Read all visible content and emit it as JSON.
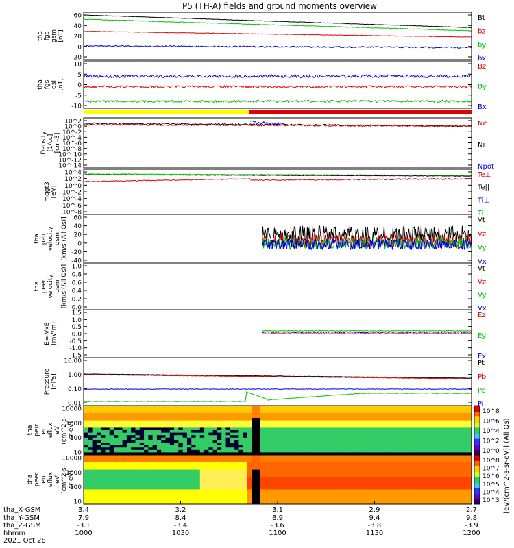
{
  "title": "P5 (TH-A) fields and ground moments overview",
  "chart_data": {
    "type": "line",
    "date_label": "2021 Oct 28",
    "x_axis": {
      "row_labels": [
        "tha_X-GSM",
        "tha_Y-GSM",
        "tha_Z-GSM",
        "hhmm"
      ],
      "columns": [
        {
          "x_gsm": "3.4",
          "y_gsm": "7.9",
          "z_gsm": "-3.1",
          "hhmm": "1000"
        },
        {
          "x_gsm": "3.2",
          "y_gsm": "8.4",
          "z_gsm": "-3.4",
          "hhmm": "1030"
        },
        {
          "x_gsm": "3.1",
          "y_gsm": "8.9",
          "z_gsm": "-3.6",
          "hhmm": "1100"
        },
        {
          "x_gsm": "2.9",
          "y_gsm": "9.4",
          "z_gsm": "-3.8",
          "hhmm": "1130"
        },
        {
          "x_gsm": "2.7",
          "y_gsm": "9.8",
          "z_gsm": "-3.9",
          "hhmm": "1200"
        }
      ]
    },
    "panels": [
      {
        "ylabel": [
          "tha",
          "fgs",
          "gsm",
          "[nT]"
        ],
        "ticks": [
          "60",
          "40",
          "20",
          "0",
          "-20"
        ],
        "legend": [
          {
            "name": "Bt",
            "color": "#000000"
          },
          {
            "name": "bz",
            "color": "#e00000"
          },
          {
            "name": "by",
            "color": "#00c000"
          },
          {
            "name": "bx",
            "color": "#0000e0"
          }
        ]
      },
      {
        "ylabel": [
          "tha",
          "fgs",
          "dsl",
          "[nT]"
        ],
        "ticks": [
          "10",
          "5",
          "0",
          "-5",
          "-10"
        ],
        "legend": [
          {
            "name": "Bz",
            "color": "#e00000"
          },
          {
            "name": "By",
            "color": "#00c000"
          },
          {
            "name": "Bx",
            "color": "#0000e0"
          }
        ]
      },
      {
        "ylabel": [
          "Density",
          "[1/cc]",
          "[cm-3]"
        ],
        "ticks": [
          "10^2",
          "10^0",
          "10^-2",
          "10^-4",
          "10^-6",
          "10^-8",
          "10^-10",
          "10^-12",
          "10^-14"
        ],
        "legend": [
          {
            "name": "Ne",
            "color": "#e00000"
          },
          {
            "name": "Ni",
            "color": "#000000"
          },
          {
            "name": "Npot",
            "color": "#0000e0"
          }
        ]
      },
      {
        "ylabel": [
          "mqgt3",
          "[eV]"
        ],
        "ticks": [
          "10^4",
          "10^2",
          "10^0",
          "10^-2",
          "10^-4",
          "10^-6",
          "10^-8"
        ],
        "legend": [
          {
            "name": "Te⊥",
            "color": "#e00000"
          },
          {
            "name": "Te||",
            "color": "#000000"
          },
          {
            "name": "Ti⊥",
            "color": "#0000e0"
          },
          {
            "name": "Ti||",
            "color": "#00c000"
          }
        ]
      },
      {
        "ylabel": [
          "tha",
          "peir",
          "velocity",
          "gsm",
          "[km/s (All Qs)]"
        ],
        "ticks": [
          "60",
          "40",
          "20",
          "0",
          "-20",
          "-40"
        ],
        "legend": [
          {
            "name": "Vt",
            "color": "#000000"
          },
          {
            "name": "Vz",
            "color": "#e00000"
          },
          {
            "name": "Vy",
            "color": "#00c000"
          },
          {
            "name": "Vx",
            "color": "#0000e0"
          }
        ]
      },
      {
        "ylabel": [
          "tha",
          "peer",
          "velocity",
          "gsm",
          "[km/s (All Qs)]"
        ],
        "ticks": [
          "1.0",
          "0.8",
          "0.6",
          "0.4",
          "0.2",
          "0.0"
        ],
        "legend": [
          {
            "name": "Vt",
            "color": "#000000"
          },
          {
            "name": "Vz",
            "color": "#e00000"
          },
          {
            "name": "Vy",
            "color": "#00c000"
          },
          {
            "name": "Vx",
            "color": "#0000e0"
          }
        ]
      },
      {
        "ylabel": [
          "E=-VxB",
          "[mV/m]"
        ],
        "ticks": [
          "1.5",
          "1.0",
          "0.5",
          "0.0",
          "-0.5",
          "-1.0",
          "-1.5"
        ],
        "legend": [
          {
            "name": "Ez",
            "color": "#e00000"
          },
          {
            "name": "Ey",
            "color": "#00c000"
          },
          {
            "name": "Ex",
            "color": "#0000e0"
          }
        ]
      },
      {
        "ylabel": [
          "Pressure",
          "[nPa]"
        ],
        "ticks": [
          "10.00",
          "1.00",
          "0.10",
          "0.01"
        ],
        "legend": [
          {
            "name": "Pt",
            "color": "#000000"
          },
          {
            "name": "Pb",
            "color": "#e00000"
          },
          {
            "name": "Pe",
            "color": "#00c000"
          },
          {
            "name": "Pi",
            "color": "#0000e0"
          }
        ]
      },
      {
        "ylabel": [
          "tha",
          "peir",
          "en",
          "eflux",
          "eV",
          "(cm^2-s-",
          "sr-eV)"
        ],
        "ticks": [
          "10000",
          "1000",
          "100",
          "10"
        ],
        "colorbar_ticks": [
          "10^8",
          "10^6",
          "10^4",
          "10^2",
          "10^0"
        ],
        "colorbar_label": "[eV/(cm^2-s-sr-eV)] (All Qs)"
      },
      {
        "ylabel": [
          "tha",
          "peer",
          "en",
          "eflux",
          "eV",
          "(cm^2-s-",
          "sr-eV)"
        ],
        "ticks": [
          "10000",
          "1000",
          "100",
          "10"
        ],
        "colorbar_ticks": [
          "10^8",
          "10^7",
          "10^6",
          "10^5",
          "10^4",
          "10^3"
        ],
        "colorbar_label": "[eV/(cm^2-s-sr-eV)] (All Qs)"
      }
    ]
  }
}
